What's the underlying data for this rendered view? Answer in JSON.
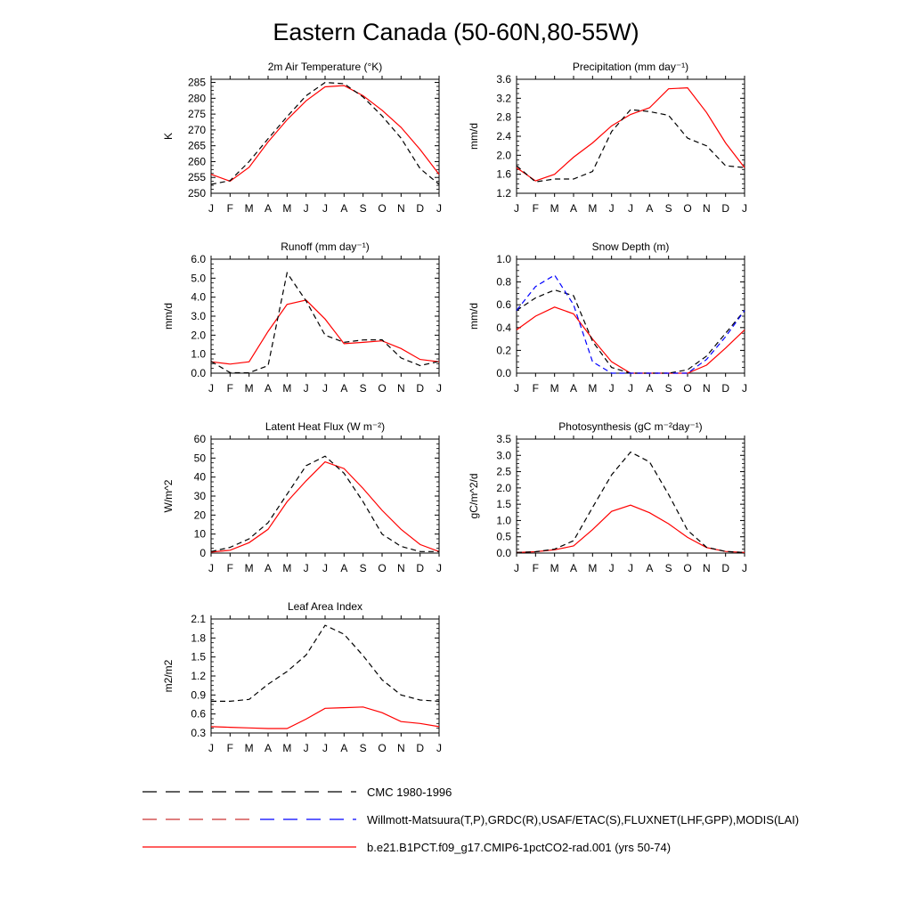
{
  "page_title": "Eastern Canada (50-60N,80-55W)",
  "legend": [
    {
      "label": "CMC 1980-1996",
      "style": "dash-black"
    },
    {
      "label": "Willmott-Matsuura(T,P),GRDC(R),USAF/ETAC(S),FLUXNET(LHF,GPP),MODIS(LAI)",
      "style": "dash-red-blue"
    },
    {
      "label": "b.e21.B1PCT.f09_g17.CMIP6-1pctCO2-rad.001 (yrs 50-74)",
      "style": "solid-red"
    }
  ],
  "colors": {
    "model": "#ff0000",
    "cmc": "#000000",
    "obs": "#0000ff",
    "obs_dash": "#cc3333"
  },
  "chart_data": [
    {
      "type": "line",
      "title": "2m Air Temperature (°K)",
      "ylabel": "K",
      "ylim": [
        250,
        286
      ],
      "yticks": [
        250,
        255,
        260,
        265,
        270,
        275,
        280,
        285
      ],
      "ytick_labels": [
        "250",
        "255",
        "260",
        "265",
        "270",
        "275",
        "280",
        "285"
      ],
      "categories": [
        "J",
        "F",
        "M",
        "A",
        "M",
        "J",
        "J",
        "A",
        "S",
        "O",
        "N",
        "D",
        "J"
      ],
      "series": [
        {
          "style": "solid-red",
          "values": [
            256,
            253.8,
            258.2,
            266.2,
            273.2,
            279.2,
            283.6,
            284,
            280.8,
            276.2,
            270.8,
            263.8,
            256
          ]
        },
        {
          "style": "dash-black",
          "values": [
            252.8,
            254,
            260,
            267.2,
            274.2,
            280.8,
            285,
            284.6,
            280.4,
            274.4,
            267.4,
            257.8,
            252.8
          ]
        }
      ]
    },
    {
      "type": "line",
      "title": "Precipitation (mm day⁻¹)",
      "ylabel": "mm/d",
      "ylim": [
        1.2,
        3.6
      ],
      "yticks": [
        1.2,
        1.6,
        2.0,
        2.4,
        2.8,
        3.2,
        3.6
      ],
      "ytick_labels": [
        "1.2",
        "1.6",
        "2.0",
        "2.4",
        "2.8",
        "3.2",
        "3.6"
      ],
      "categories": [
        "J",
        "F",
        "M",
        "A",
        "M",
        "J",
        "J",
        "A",
        "S",
        "O",
        "N",
        "D",
        "J"
      ],
      "series": [
        {
          "style": "solid-red",
          "values": [
            1.74,
            1.46,
            1.6,
            1.96,
            2.26,
            2.62,
            2.86,
            3.0,
            3.4,
            3.42,
            2.9,
            2.26,
            1.74
          ]
        },
        {
          "style": "dash-black",
          "values": [
            1.78,
            1.44,
            1.5,
            1.5,
            1.66,
            2.5,
            2.96,
            2.92,
            2.84,
            2.36,
            2.2,
            1.78,
            1.74
          ]
        }
      ]
    },
    {
      "type": "line",
      "title": "Runoff (mm day⁻¹)",
      "ylabel": "mm/d",
      "ylim": [
        0,
        6.0
      ],
      "yticks": [
        0,
        1,
        2,
        3,
        4,
        5,
        6
      ],
      "ytick_labels": [
        "0.0",
        "1.0",
        "2.0",
        "3.0",
        "4.0",
        "5.0",
        "6.0"
      ],
      "categories": [
        "J",
        "F",
        "M",
        "A",
        "M",
        "J",
        "J",
        "A",
        "S",
        "O",
        "N",
        "D",
        "J"
      ],
      "series": [
        {
          "style": "solid-red",
          "values": [
            0.6,
            0.48,
            0.6,
            2.2,
            3.62,
            3.85,
            2.85,
            1.55,
            1.62,
            1.7,
            1.3,
            0.72,
            0.6
          ]
        },
        {
          "style": "dash-black",
          "values": [
            0.62,
            0.03,
            0.02,
            0.4,
            5.28,
            3.8,
            2.0,
            1.62,
            1.75,
            1.76,
            0.8,
            0.4,
            0.62
          ]
        }
      ]
    },
    {
      "type": "line",
      "title": "Snow Depth (m)",
      "ylabel": "mm/d",
      "ylim": [
        0,
        1.0
      ],
      "yticks": [
        0,
        0.2,
        0.4,
        0.6,
        0.8,
        1.0
      ],
      "ytick_labels": [
        "0.0",
        "0.2",
        "0.4",
        "0.6",
        "0.8",
        "1.0"
      ],
      "categories": [
        "J",
        "F",
        "M",
        "A",
        "M",
        "J",
        "J",
        "A",
        "S",
        "O",
        "N",
        "D",
        "J"
      ],
      "series": [
        {
          "style": "solid-red",
          "values": [
            0.38,
            0.5,
            0.58,
            0.52,
            0.3,
            0.1,
            0.0,
            0.0,
            0.0,
            0.0,
            0.07,
            0.22,
            0.38
          ]
        },
        {
          "style": "dash-black",
          "values": [
            0.55,
            0.66,
            0.73,
            0.68,
            0.28,
            0.05,
            0.0,
            0.0,
            0.0,
            0.03,
            0.15,
            0.35,
            0.55
          ]
        },
        {
          "style": "dash-blue",
          "values": [
            0.55,
            0.76,
            0.86,
            0.6,
            0.1,
            0.0,
            0.0,
            0.0,
            0.0,
            0.0,
            0.12,
            0.32,
            0.55
          ]
        }
      ]
    },
    {
      "type": "line",
      "title": "Latent Heat Flux (W m⁻²)",
      "ylabel": "W/m^2",
      "ylim": [
        0,
        60
      ],
      "yticks": [
        0,
        10,
        20,
        30,
        40,
        50,
        60
      ],
      "ytick_labels": [
        "0",
        "10",
        "20",
        "30",
        "40",
        "50",
        "60"
      ],
      "categories": [
        "J",
        "F",
        "M",
        "A",
        "M",
        "J",
        "J",
        "A",
        "S",
        "O",
        "N",
        "D",
        "J"
      ],
      "series": [
        {
          "style": "solid-red",
          "values": [
            0.5,
            1.5,
            5.5,
            12.5,
            27,
            38,
            48,
            44.5,
            34,
            22.5,
            12.5,
            4.5,
            0.8
          ]
        },
        {
          "style": "dash-black",
          "values": [
            0.8,
            3.0,
            7.5,
            16,
            31,
            46,
            51,
            42,
            27,
            10,
            3.5,
            0.8,
            0.8
          ]
        }
      ]
    },
    {
      "type": "line",
      "title": "Photosynthesis (gC m⁻²day⁻¹)",
      "ylabel": "gC/m^2/d",
      "ylim": [
        0,
        3.5
      ],
      "yticks": [
        0,
        0.5,
        1.0,
        1.5,
        2.0,
        2.5,
        3.0,
        3.5
      ],
      "ytick_labels": [
        "0.0",
        "0.5",
        "1.0",
        "1.5",
        "2.0",
        "2.5",
        "3.0",
        "3.5"
      ],
      "categories": [
        "J",
        "F",
        "M",
        "A",
        "M",
        "J",
        "J",
        "A",
        "S",
        "O",
        "N",
        "D",
        "J"
      ],
      "series": [
        {
          "style": "solid-red",
          "values": [
            0.02,
            0.04,
            0.1,
            0.22,
            0.72,
            1.28,
            1.47,
            1.24,
            0.9,
            0.48,
            0.17,
            0.05,
            0.02
          ]
        },
        {
          "style": "dash-black",
          "values": [
            0.02,
            0.04,
            0.12,
            0.38,
            1.4,
            2.4,
            3.1,
            2.8,
            1.8,
            0.7,
            0.18,
            0.05,
            0.02
          ]
        }
      ]
    },
    {
      "type": "line",
      "title": "Leaf Area Index",
      "ylabel": "m2/m2",
      "ylim": [
        0.3,
        2.1
      ],
      "yticks": [
        0.3,
        0.6,
        0.9,
        1.2,
        1.5,
        1.8,
        2.1
      ],
      "ytick_labels": [
        "0.3",
        "0.6",
        "0.9",
        "1.2",
        "1.5",
        "1.8",
        "2.1"
      ],
      "categories": [
        "J",
        "F",
        "M",
        "A",
        "M",
        "J",
        "J",
        "A",
        "S",
        "O",
        "N",
        "D",
        "J"
      ],
      "series": [
        {
          "style": "solid-red",
          "values": [
            0.4,
            0.39,
            0.38,
            0.37,
            0.37,
            0.52,
            0.69,
            0.7,
            0.71,
            0.62,
            0.48,
            0.45,
            0.4
          ]
        },
        {
          "style": "dash-black",
          "values": [
            0.8,
            0.8,
            0.83,
            1.07,
            1.27,
            1.53,
            2.0,
            1.86,
            1.52,
            1.14,
            0.9,
            0.82,
            0.8
          ]
        }
      ]
    }
  ]
}
